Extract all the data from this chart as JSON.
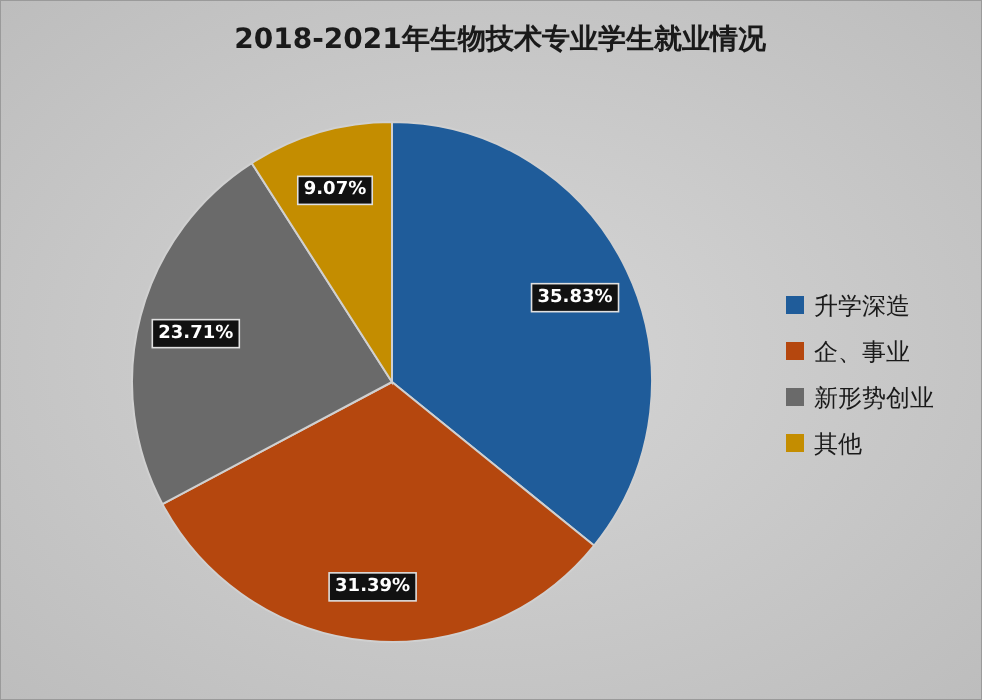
{
  "chart_data": {
    "type": "pie",
    "title": "2018-2021年生物技术专业学生就业情况",
    "categories": [
      "升学深造",
      "企、事业",
      "新形势创业",
      "其他"
    ],
    "values": [
      35.83,
      31.39,
      23.71,
      9.07
    ],
    "colors": [
      "#1f5c9a",
      "#b5470e",
      "#6a6a6a",
      "#c48d00"
    ],
    "value_labels": [
      "35.83%",
      "31.39%",
      "23.71%",
      "9.07%"
    ],
    "legend": "right"
  }
}
